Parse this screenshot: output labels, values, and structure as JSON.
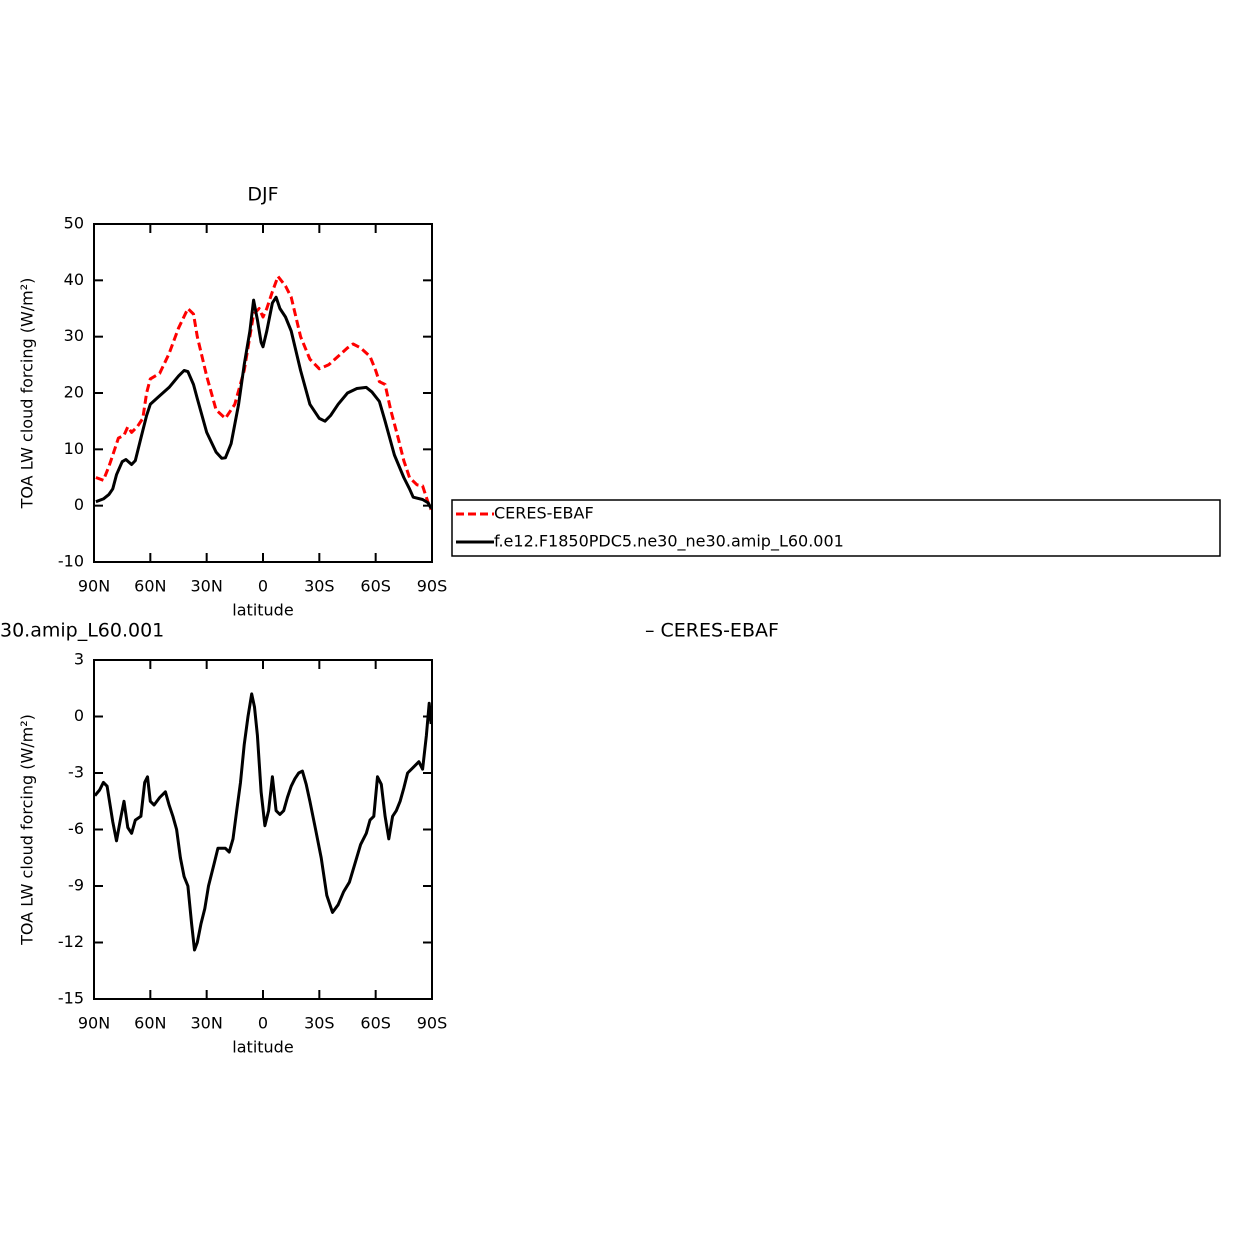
{
  "chart_data": [
    {
      "type": "line",
      "title": "DJF",
      "xlabel": "latitude",
      "ylabel": "TOA LW cloud forcing (W/m²)",
      "xlim": [
        90,
        -90
      ],
      "xticks": [
        {
          "value": 90,
          "label": "90N"
        },
        {
          "value": 60,
          "label": "60N"
        },
        {
          "value": 30,
          "label": "30N"
        },
        0,
        {
          "value": -30,
          "label": "30S"
        },
        {
          "value": -60,
          "label": "60S"
        },
        {
          "value": -90,
          "label": "90S"
        }
      ],
      "ylim": [
        -10,
        50
      ],
      "yticks": [
        -10,
        0,
        10,
        20,
        30,
        40,
        50
      ],
      "legend": "right",
      "series": [
        {
          "name": "CERES-EBAF",
          "color": "#ff0000",
          "dash": true,
          "x": [
            89,
            85,
            82,
            80,
            77,
            74,
            72,
            70,
            67,
            64,
            62,
            60,
            55,
            50,
            45,
            40,
            37,
            35,
            30,
            25,
            20,
            15,
            10,
            5,
            2,
            0,
            -2,
            -5,
            -8,
            -12,
            -15,
            -20,
            -25,
            -30,
            -35,
            -40,
            -45,
            -48,
            -52,
            -57,
            -60,
            -62,
            -65,
            -68,
            -72,
            -75,
            -78,
            -82,
            -85,
            -88,
            -89.5
          ],
          "values": [
            5,
            4.5,
            7,
            9,
            12,
            12.5,
            14,
            13,
            14,
            15.5,
            20,
            22.5,
            23.5,
            27,
            31.5,
            35,
            34,
            30,
            23,
            17,
            15.5,
            18,
            24,
            34,
            35,
            33.5,
            35,
            38,
            40.7,
            39,
            37,
            30,
            26,
            24.3,
            25,
            26.5,
            28,
            28.7,
            28,
            26.5,
            24,
            22,
            21.5,
            17,
            12,
            8,
            5,
            3.7,
            3.5,
            0.5,
            -0.7
          ]
        },
        {
          "name": "f.e12.F1850PDC5.ne30_ne30.amip_L60.001",
          "color": "#000000",
          "dash": false,
          "x": [
            89,
            85,
            82,
            80,
            78,
            75,
            73,
            70,
            68,
            65,
            62,
            60,
            55,
            50,
            45,
            42,
            40,
            37,
            35,
            30,
            25,
            22,
            20,
            17,
            13,
            10,
            7,
            5,
            3,
            1,
            0,
            -2,
            -5,
            -7,
            -9,
            -12,
            -15,
            -20,
            -25,
            -30,
            -33,
            -36,
            -40,
            -45,
            -50,
            -55,
            -58,
            -62,
            -65,
            -70,
            -75,
            -78,
            -80,
            -85,
            -88,
            -89.5
          ],
          "values": [
            0.7,
            1.2,
            2,
            3,
            5.5,
            7.8,
            8.2,
            7.3,
            8,
            12,
            16,
            18,
            19.5,
            21,
            23,
            24,
            23.8,
            21.5,
            19,
            13,
            9.5,
            8.4,
            8.5,
            11,
            18,
            25,
            31,
            36.5,
            33,
            29,
            28.2,
            31,
            36,
            37,
            35,
            33.5,
            31,
            24,
            18,
            15.5,
            15,
            16,
            18,
            20,
            20.8,
            21,
            20.2,
            18.5,
            15,
            9,
            5,
            3,
            1.5,
            1.1,
            0.5,
            -0.5
          ]
        }
      ]
    },
    {
      "type": "line",
      "title_left": "30.amip_L60.001",
      "title_right": "– CERES-EBAF",
      "xlabel": "latitude",
      "ylabel": "TOA LW cloud forcing (W/m²)",
      "xlim": [
        90,
        -90
      ],
      "xticks": [
        {
          "value": 90,
          "label": "90N"
        },
        {
          "value": 60,
          "label": "60N"
        },
        {
          "value": 30,
          "label": "30N"
        },
        0,
        {
          "value": -30,
          "label": "30S"
        },
        {
          "value": -60,
          "label": "60S"
        },
        {
          "value": -90,
          "label": "90S"
        }
      ],
      "ylim": [
        -15,
        3
      ],
      "yticks": [
        -15,
        -12,
        -9,
        -6,
        -3,
        0,
        3
      ],
      "series": [
        {
          "color": "#000000",
          "dash": false,
          "x": [
            89.5,
            87,
            85,
            83,
            80,
            78,
            76,
            74,
            72,
            70,
            68,
            65,
            63,
            61.5,
            60,
            58,
            55,
            52,
            50,
            48,
            46,
            44,
            42,
            40,
            38,
            36.5,
            35,
            33,
            31,
            29,
            26,
            24,
            22,
            20,
            18,
            16,
            14,
            12,
            10,
            8,
            6,
            4.5,
            3,
            1,
            -1,
            -3,
            -5,
            -7,
            -9,
            -11,
            -13,
            -15,
            -17,
            -19,
            -21,
            -23,
            -25,
            -28,
            -31,
            -34,
            -37,
            -40,
            -43,
            -46,
            -49,
            -52,
            -55,
            -57,
            -59,
            -61,
            -63,
            -65,
            -67,
            -69,
            -71,
            -73,
            -75,
            -77,
            -80,
            -83,
            -85,
            -87,
            -88.5,
            -89.5
          ],
          "values": [
            -4.2,
            -3.9,
            -3.5,
            -3.7,
            -5.6,
            -6.6,
            -5.5,
            -4.5,
            -5.9,
            -6.2,
            -5.5,
            -5.3,
            -3.5,
            -3.2,
            -4.5,
            -4.7,
            -4.3,
            -4,
            -4.7,
            -5.3,
            -6,
            -7.5,
            -8.5,
            -9,
            -11,
            -12.4,
            -12,
            -11,
            -10.2,
            -9,
            -7.8,
            -7,
            -7,
            -7,
            -7.2,
            -6.5,
            -5,
            -3.5,
            -1.5,
            0,
            1.2,
            0.5,
            -1,
            -4,
            -5.8,
            -5,
            -3.2,
            -5,
            -5.2,
            -5,
            -4.3,
            -3.7,
            -3.3,
            -3,
            -2.9,
            -3.6,
            -4.5,
            -6,
            -7.5,
            -9.5,
            -10.4,
            -10,
            -9.3,
            -8.8,
            -7.8,
            -6.8,
            -6.2,
            -5.5,
            -5.3,
            -3.2,
            -3.6,
            -5.3,
            -6.5,
            -5.3,
            -5,
            -4.5,
            -3.8,
            -3,
            -2.7,
            -2.4,
            -2.8,
            -1,
            0.7,
            -0.4
          ]
        }
      ]
    }
  ]
}
